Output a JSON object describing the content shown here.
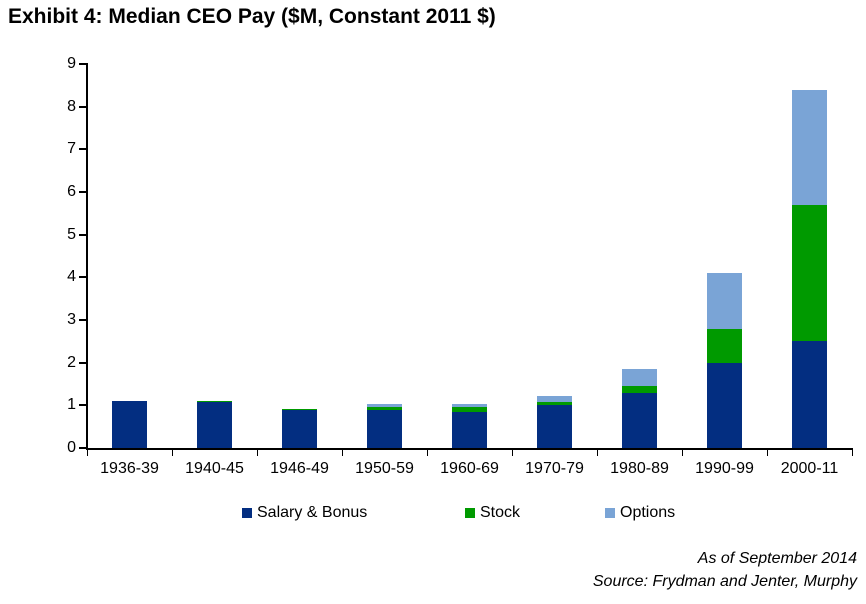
{
  "title": "Exhibit 4: Median CEO Pay ($M, Constant 2011 $)",
  "colors": {
    "salary_bonus": "#032e81",
    "stock": "#009a00",
    "options": "#7aa4d6",
    "axis": "#000000",
    "text": "#000000",
    "background": "#ffffff"
  },
  "chart_data": {
    "type": "bar",
    "stacked": true,
    "title": "Exhibit 4: Median CEO Pay ($M, Constant 2011 $)",
    "xlabel": "",
    "ylabel": "",
    "categories": [
      "1936-39",
      "1940-45",
      "1946-49",
      "1950-59",
      "1960-69",
      "1970-79",
      "1980-89",
      "1990-99",
      "2000-11"
    ],
    "series": [
      {
        "name": "Salary & Bonus",
        "color_key": "salary_bonus",
        "values": [
          1.1,
          1.07,
          0.9,
          0.88,
          0.84,
          1.0,
          1.3,
          2.0,
          2.5
        ]
      },
      {
        "name": "Stock",
        "color_key": "stock",
        "values": [
          0,
          0.02,
          0.02,
          0.07,
          0.11,
          0.08,
          0.15,
          0.8,
          3.2
        ]
      },
      {
        "name": "Options",
        "color_key": "options",
        "values": [
          0,
          0,
          0,
          0.07,
          0.08,
          0.13,
          0.4,
          1.3,
          2.7
        ]
      }
    ],
    "totals": [
      1.1,
      1.09,
      0.92,
      1.02,
      1.03,
      1.21,
      1.85,
      4.1,
      8.4
    ],
    "ylim": [
      0,
      9
    ],
    "ytick_step": 1,
    "ytick_labels": [
      "0",
      "1",
      "2",
      "3",
      "4",
      "5",
      "6",
      "7",
      "8",
      "9"
    ],
    "grid": false,
    "legend_position": "bottom"
  },
  "legend": {
    "items": [
      {
        "label": "Salary & Bonus",
        "color_key": "salary_bonus"
      },
      {
        "label": "Stock",
        "color_key": "stock"
      },
      {
        "label": "Options",
        "color_key": "options"
      }
    ]
  },
  "footer": {
    "line1": "As of September 2014",
    "line2": "Source: Frydman and Jenter, Murphy"
  }
}
